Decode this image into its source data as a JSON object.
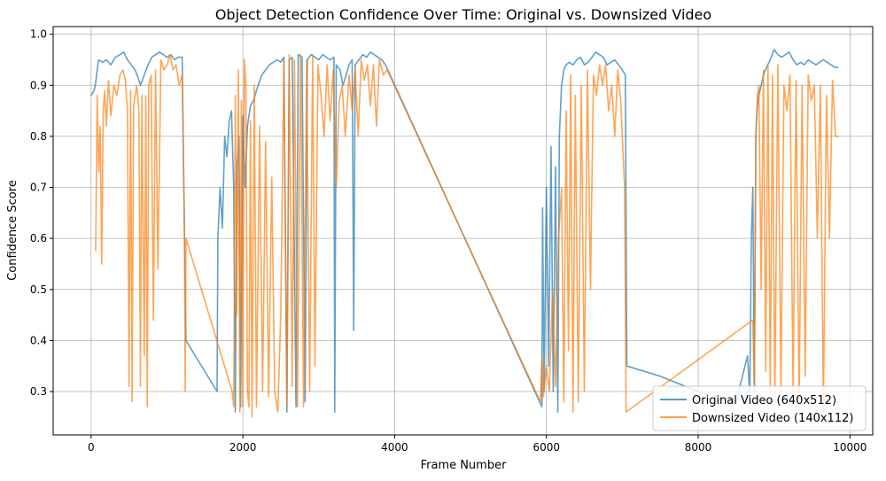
{
  "chart_data": {
    "type": "line",
    "title": "Object Detection Confidence Over Time: Original vs. Downsized Video",
    "xlabel": "Frame Number",
    "ylabel": "Confidence Score",
    "xlim": [
      -500,
      10300
    ],
    "ylim": [
      0.215,
      1.015
    ],
    "xticks": [
      0,
      2000,
      4000,
      6000,
      8000,
      10000
    ],
    "yticks": [
      0.3,
      0.4,
      0.5,
      0.6,
      0.7,
      0.8,
      0.9,
      1.0
    ],
    "xtick_labels": [
      "0",
      "2000",
      "4000",
      "6000",
      "8000",
      "10000"
    ],
    "ytick_labels": [
      "0.3",
      "0.4",
      "0.5",
      "0.6",
      "0.7",
      "0.8",
      "0.9",
      "1.0"
    ],
    "grid": true,
    "legend_position": "bottom-right",
    "series": [
      {
        "name": "Original Video (640x512)",
        "color": "#1f77b4",
        "points": [
          [
            0,
            0.88
          ],
          [
            40,
            0.89
          ],
          [
            60,
            0.905
          ],
          [
            80,
            0.93
          ],
          [
            100,
            0.95
          ],
          [
            150,
            0.945
          ],
          [
            200,
            0.95
          ],
          [
            260,
            0.94
          ],
          [
            320,
            0.955
          ],
          [
            380,
            0.96
          ],
          [
            430,
            0.965
          ],
          [
            480,
            0.95
          ],
          [
            530,
            0.94
          ],
          [
            580,
            0.93
          ],
          [
            620,
            0.915
          ],
          [
            650,
            0.9
          ],
          [
            700,
            0.92
          ],
          [
            750,
            0.94
          ],
          [
            800,
            0.955
          ],
          [
            850,
            0.96
          ],
          [
            900,
            0.965
          ],
          [
            950,
            0.96
          ],
          [
            1000,
            0.955
          ],
          [
            1050,
            0.96
          ],
          [
            1100,
            0.95
          ],
          [
            1150,
            0.955
          ],
          [
            1200,
            0.955
          ],
          [
            1230,
            0.6
          ],
          [
            1250,
            0.4
          ],
          [
            1660,
            0.3
          ],
          [
            1670,
            0.6
          ],
          [
            1700,
            0.7
          ],
          [
            1730,
            0.62
          ],
          [
            1760,
            0.8
          ],
          [
            1790,
            0.76
          ],
          [
            1820,
            0.83
          ],
          [
            1850,
            0.85
          ],
          [
            1880,
            0.7
          ],
          [
            1900,
            0.26
          ],
          [
            1920,
            0.74
          ],
          [
            1950,
            0.8
          ],
          [
            1970,
            0.27
          ],
          [
            2000,
            0.84
          ],
          [
            2030,
            0.7
          ],
          [
            2060,
            0.82
          ],
          [
            2100,
            0.86
          ],
          [
            2140,
            0.87
          ],
          [
            2200,
            0.9
          ],
          [
            2250,
            0.92
          ],
          [
            2300,
            0.93
          ],
          [
            2350,
            0.94
          ],
          [
            2400,
            0.945
          ],
          [
            2450,
            0.95
          ],
          [
            2500,
            0.945
          ],
          [
            2540,
            0.955
          ],
          [
            2580,
            0.26
          ],
          [
            2610,
            0.95
          ],
          [
            2650,
            0.955
          ],
          [
            2700,
            0.27
          ],
          [
            2730,
            0.96
          ],
          [
            2780,
            0.955
          ],
          [
            2820,
            0.28
          ],
          [
            2850,
            0.95
          ],
          [
            2900,
            0.96
          ],
          [
            2950,
            0.955
          ],
          [
            3000,
            0.95
          ],
          [
            3050,
            0.96
          ],
          [
            3100,
            0.955
          ],
          [
            3150,
            0.95
          ],
          [
            3200,
            0.955
          ],
          [
            3210,
            0.26
          ],
          [
            3230,
            0.94
          ],
          [
            3280,
            0.93
          ],
          [
            3320,
            0.9
          ],
          [
            3360,
            0.92
          ],
          [
            3400,
            0.94
          ],
          [
            3440,
            0.95
          ],
          [
            3460,
            0.42
          ],
          [
            3480,
            0.94
          ],
          [
            3530,
            0.95
          ],
          [
            3580,
            0.96
          ],
          [
            3630,
            0.955
          ],
          [
            3680,
            0.965
          ],
          [
            3730,
            0.96
          ],
          [
            3780,
            0.955
          ],
          [
            3830,
            0.95
          ],
          [
            3880,
            0.94
          ],
          [
            5940,
            0.27
          ],
          [
            5950,
            0.66
          ],
          [
            5970,
            0.3
          ],
          [
            6000,
            0.7
          ],
          [
            6030,
            0.35
          ],
          [
            6060,
            0.78
          ],
          [
            6090,
            0.3
          ],
          [
            6120,
            0.74
          ],
          [
            6150,
            0.26
          ],
          [
            6170,
            0.8
          ],
          [
            6200,
            0.9
          ],
          [
            6230,
            0.93
          ],
          [
            6260,
            0.94
          ],
          [
            6300,
            0.945
          ],
          [
            6350,
            0.94
          ],
          [
            6400,
            0.95
          ],
          [
            6450,
            0.955
          ],
          [
            6500,
            0.94
          ],
          [
            6550,
            0.945
          ],
          [
            6600,
            0.955
          ],
          [
            6650,
            0.965
          ],
          [
            6700,
            0.96
          ],
          [
            6750,
            0.955
          ],
          [
            6800,
            0.94
          ],
          [
            6850,
            0.945
          ],
          [
            6900,
            0.95
          ],
          [
            6950,
            0.94
          ],
          [
            7000,
            0.93
          ],
          [
            7040,
            0.92
          ],
          [
            7060,
            0.35
          ],
          [
            7500,
            0.33
          ],
          [
            8000,
            0.3
          ],
          [
            8500,
            0.28
          ],
          [
            8650,
            0.37
          ],
          [
            8680,
            0.29
          ],
          [
            8700,
            0.6
          ],
          [
            8720,
            0.7
          ],
          [
            8740,
            0.3
          ],
          [
            8760,
            0.8
          ],
          [
            8780,
            0.86
          ],
          [
            8800,
            0.88
          ],
          [
            8830,
            0.9
          ],
          [
            8860,
            0.92
          ],
          [
            8900,
            0.935
          ],
          [
            8950,
            0.95
          ],
          [
            9000,
            0.97
          ],
          [
            9050,
            0.96
          ],
          [
            9100,
            0.955
          ],
          [
            9150,
            0.96
          ],
          [
            9200,
            0.965
          ],
          [
            9250,
            0.95
          ],
          [
            9300,
            0.94
          ],
          [
            9350,
            0.945
          ],
          [
            9400,
            0.94
          ],
          [
            9450,
            0.95
          ],
          [
            9500,
            0.945
          ],
          [
            9550,
            0.94
          ],
          [
            9600,
            0.945
          ],
          [
            9650,
            0.95
          ],
          [
            9700,
            0.945
          ],
          [
            9750,
            0.94
          ],
          [
            9800,
            0.935
          ],
          [
            9850,
            0.935
          ]
        ]
      },
      {
        "name": "Downsized Video (140x112)",
        "color": "#ff7f0e",
        "points": [
          [
            60,
            0.575
          ],
          [
            80,
            0.88
          ],
          [
            100,
            0.73
          ],
          [
            120,
            0.82
          ],
          [
            140,
            0.55
          ],
          [
            160,
            0.85
          ],
          [
            180,
            0.89
          ],
          [
            200,
            0.82
          ],
          [
            230,
            0.91
          ],
          [
            260,
            0.84
          ],
          [
            300,
            0.9
          ],
          [
            340,
            0.88
          ],
          [
            380,
            0.92
          ],
          [
            420,
            0.93
          ],
          [
            450,
            0.91
          ],
          [
            480,
            0.85
          ],
          [
            500,
            0.31
          ],
          [
            520,
            0.89
          ],
          [
            540,
            0.28
          ],
          [
            560,
            0.86
          ],
          [
            600,
            0.9
          ],
          [
            630,
            0.85
          ],
          [
            650,
            0.31
          ],
          [
            670,
            0.88
          ],
          [
            700,
            0.37
          ],
          [
            720,
            0.88
          ],
          [
            740,
            0.27
          ],
          [
            760,
            0.9
          ],
          [
            790,
            0.92
          ],
          [
            820,
            0.44
          ],
          [
            850,
            0.93
          ],
          [
            880,
            0.54
          ],
          [
            920,
            0.95
          ],
          [
            960,
            0.93
          ],
          [
            1000,
            0.94
          ],
          [
            1040,
            0.96
          ],
          [
            1080,
            0.93
          ],
          [
            1120,
            0.94
          ],
          [
            1160,
            0.9
          ],
          [
            1200,
            0.92
          ],
          [
            1230,
            0.63
          ],
          [
            1240,
            0.3
          ],
          [
            1250,
            0.6
          ],
          [
            1860,
            0.3
          ],
          [
            1880,
            0.27
          ],
          [
            1900,
            0.88
          ],
          [
            1920,
            0.45
          ],
          [
            1940,
            0.93
          ],
          [
            1960,
            0.26
          ],
          [
            1980,
            0.87
          ],
          [
            2000,
            0.27
          ],
          [
            2020,
            0.95
          ],
          [
            2040,
            0.9
          ],
          [
            2060,
            0.3
          ],
          [
            2080,
            0.27
          ],
          [
            2100,
            0.83
          ],
          [
            2120,
            0.25
          ],
          [
            2150,
            0.9
          ],
          [
            2180,
            0.27
          ],
          [
            2220,
            0.82
          ],
          [
            2260,
            0.3
          ],
          [
            2300,
            0.79
          ],
          [
            2340,
            0.29
          ],
          [
            2380,
            0.72
          ],
          [
            2420,
            0.3
          ],
          [
            2460,
            0.26
          ],
          [
            2500,
            0.45
          ],
          [
            2540,
            0.95
          ],
          [
            2580,
            0.27
          ],
          [
            2610,
            0.96
          ],
          [
            2650,
            0.31
          ],
          [
            2680,
            0.95
          ],
          [
            2720,
            0.27
          ],
          [
            2760,
            0.96
          ],
          [
            2800,
            0.27
          ],
          [
            2840,
            0.95
          ],
          [
            2880,
            0.3
          ],
          [
            2920,
            0.96
          ],
          [
            2950,
            0.35
          ],
          [
            2990,
            0.94
          ],
          [
            3030,
            0.88
          ],
          [
            3070,
            0.8
          ],
          [
            3110,
            0.94
          ],
          [
            3150,
            0.83
          ],
          [
            3190,
            0.93
          ],
          [
            3230,
            0.7
          ],
          [
            3270,
            0.87
          ],
          [
            3310,
            0.9
          ],
          [
            3350,
            0.8
          ],
          [
            3400,
            0.92
          ],
          [
            3440,
            0.85
          ],
          [
            3480,
            0.93
          ],
          [
            3520,
            0.8
          ],
          [
            3560,
            0.95
          ],
          [
            3600,
            0.91
          ],
          [
            3640,
            0.94
          ],
          [
            3680,
            0.86
          ],
          [
            3720,
            0.94
          ],
          [
            3760,
            0.82
          ],
          [
            3800,
            0.95
          ],
          [
            3850,
            0.92
          ],
          [
            3900,
            0.93
          ],
          [
            5920,
            0.28
          ],
          [
            5940,
            0.37
          ],
          [
            5960,
            0.29
          ],
          [
            6000,
            0.35
          ],
          [
            6040,
            0.3
          ],
          [
            6080,
            0.5
          ],
          [
            6120,
            0.31
          ],
          [
            6160,
            0.6
          ],
          [
            6200,
            0.7
          ],
          [
            6230,
            0.28
          ],
          [
            6260,
            0.85
          ],
          [
            6290,
            0.38
          ],
          [
            6320,
            0.92
          ],
          [
            6350,
            0.26
          ],
          [
            6380,
            0.88
          ],
          [
            6420,
            0.28
          ],
          [
            6460,
            0.9
          ],
          [
            6500,
            0.3
          ],
          [
            6540,
            0.93
          ],
          [
            6580,
            0.5
          ],
          [
            6620,
            0.92
          ],
          [
            6660,
            0.88
          ],
          [
            6700,
            0.94
          ],
          [
            6740,
            0.9
          ],
          [
            6780,
            0.94
          ],
          [
            6820,
            0.85
          ],
          [
            6860,
            0.9
          ],
          [
            6900,
            0.8
          ],
          [
            6940,
            0.93
          ],
          [
            6980,
            0.87
          ],
          [
            7030,
            0.7
          ],
          [
            7050,
            0.26
          ],
          [
            8720,
            0.44
          ],
          [
            8740,
            0.3
          ],
          [
            8760,
            0.8
          ],
          [
            8780,
            0.88
          ],
          [
            8800,
            0.9
          ],
          [
            8830,
            0.5
          ],
          [
            8860,
            0.93
          ],
          [
            8890,
            0.34
          ],
          [
            8920,
            0.94
          ],
          [
            8950,
            0.29
          ],
          [
            8980,
            0.92
          ],
          [
            9010,
            0.27
          ],
          [
            9050,
            0.94
          ],
          [
            9090,
            0.3
          ],
          [
            9130,
            0.9
          ],
          [
            9170,
            0.85
          ],
          [
            9210,
            0.92
          ],
          [
            9250,
            0.3
          ],
          [
            9290,
            0.91
          ],
          [
            9330,
            0.26
          ],
          [
            9370,
            0.9
          ],
          [
            9410,
            0.33
          ],
          [
            9450,
            0.92
          ],
          [
            9490,
            0.87
          ],
          [
            9530,
            0.9
          ],
          [
            9570,
            0.6
          ],
          [
            9610,
            0.9
          ],
          [
            9650,
            0.26
          ],
          [
            9690,
            0.88
          ],
          [
            9730,
            0.6
          ],
          [
            9770,
            0.91
          ],
          [
            9810,
            0.8
          ],
          [
            9850,
            0.8
          ]
        ]
      }
    ]
  }
}
